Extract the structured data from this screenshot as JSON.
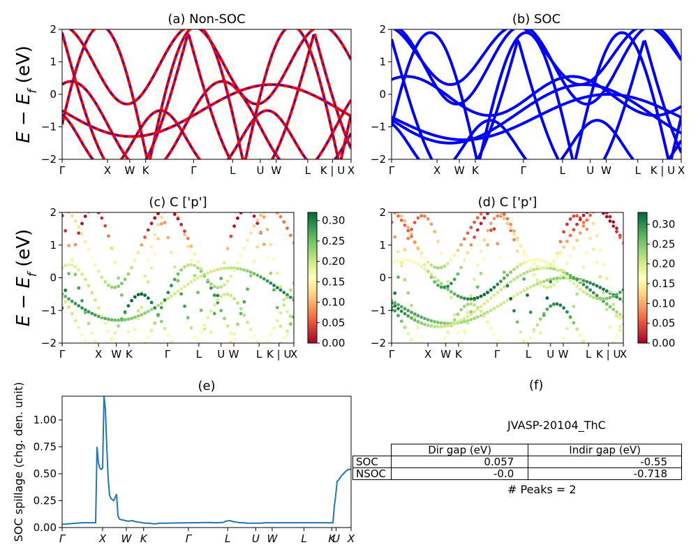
{
  "figure": {
    "material_id": "JVASP-20104_ThC",
    "peaks_label": "# Peaks = 2"
  },
  "kpath_labels": [
    "Γ",
    "X",
    "W",
    "K",
    "Γ",
    "L",
    "U",
    "W",
    "L",
    "K | U",
    "X"
  ],
  "chart_data": [
    {
      "id": "a",
      "type": "line",
      "title": "(a) Non-SOC",
      "ylabel": "E − E_f (eV)",
      "ylim": [
        -2,
        2
      ],
      "yticks": [
        "2",
        "1",
        "0",
        "−1",
        "−2"
      ],
      "xticks": [
        "Γ",
        "X",
        "W",
        "K",
        "Γ",
        "L",
        "U",
        "W",
        "L",
        "K | U",
        "X"
      ],
      "colors": {
        "base": "#ff0000",
        "overlay": "#1515c8"
      },
      "band_style": "red solid with blue dashed overlay"
    },
    {
      "id": "b",
      "type": "line",
      "title": "(b) SOC",
      "ylim": [
        -2,
        2
      ],
      "yticks": [
        "2",
        "1",
        "0",
        "−1",
        "−2"
      ],
      "xticks": [
        "Γ",
        "X",
        "W",
        "K",
        "Γ",
        "L",
        "U",
        "W",
        "L",
        "K | U",
        "X"
      ],
      "colors": {
        "base": "#0000ff"
      }
    },
    {
      "id": "c",
      "type": "scatter",
      "title": "(c)  C ['p']",
      "ylabel": "E − E_f (eV)",
      "ylim": [
        -2,
        2
      ],
      "yticks": [
        "2",
        "1",
        "0",
        "−1",
        "−2"
      ],
      "xticks": [
        "Γ",
        "X",
        "W",
        "K",
        "Γ",
        "L",
        "U",
        "W",
        "L",
        "K | U",
        "X"
      ],
      "colorbar": {
        "cmap": "RdYlGn",
        "range": [
          0,
          0.32
        ],
        "ticks": [
          "0.30",
          "0.25",
          "0.20",
          "0.15",
          "0.10",
          "0.05",
          "0.00"
        ]
      }
    },
    {
      "id": "d",
      "type": "scatter",
      "title": "(d) C ['p']",
      "ylim": [
        -2,
        2
      ],
      "yticks": [
        "2",
        "1",
        "0",
        "−1",
        "−2"
      ],
      "xticks": [
        "Γ",
        "X",
        "W",
        "K",
        "Γ",
        "L",
        "U",
        "W",
        "L",
        "K | U",
        "X"
      ],
      "colorbar": {
        "cmap": "RdYlGn",
        "range": [
          0,
          0.33
        ],
        "ticks": [
          "0.30",
          "0.25",
          "0.20",
          "0.15",
          "0.10",
          "0.05",
          "0.00"
        ]
      }
    },
    {
      "id": "e",
      "type": "line",
      "title": "(e)",
      "ylabel": "SOC spillage (chg. den. unit)",
      "ylim": [
        0,
        1.22
      ],
      "yticks": [
        "1.00",
        "0.75",
        "0.50",
        "0.25",
        "0.00"
      ],
      "xticks": [
        "Γ",
        "X",
        "W",
        "K",
        "Γ",
        "L",
        "U",
        "W",
        "L",
        "K",
        "U",
        "X"
      ],
      "color": "#1f77b4",
      "x": [
        0,
        10,
        20,
        30,
        40,
        44,
        48,
        50,
        52,
        54,
        56,
        58,
        60,
        62,
        64,
        66,
        68,
        70,
        72,
        74,
        76,
        78,
        80,
        82,
        84,
        86,
        88,
        90,
        95,
        100,
        105,
        110,
        115,
        120,
        125,
        130,
        135,
        140,
        145,
        150,
        155,
        160,
        165,
        170,
        175,
        180,
        185,
        190,
        195,
        200,
        205,
        210,
        215,
        220,
        225,
        230,
        235,
        240,
        245,
        250,
        255,
        260,
        265,
        270,
        275,
        280,
        285,
        290,
        295,
        300,
        305,
        310,
        315,
        320,
        325,
        330,
        335,
        340,
        345,
        350,
        355,
        360,
        365,
        370,
        375,
        380,
        385,
        388,
        390,
        392,
        394,
        396,
        398,
        400,
        403,
        406,
        410,
        414
      ],
      "values": [
        0.03,
        0.035,
        0.04,
        0.045,
        0.045,
        0.045,
        0.045,
        0.75,
        0.6,
        0.55,
        0.54,
        0.55,
        1.22,
        1.1,
        0.75,
        0.45,
        0.3,
        0.27,
        0.26,
        0.25,
        0.28,
        0.31,
        0.11,
        0.08,
        0.075,
        0.07,
        0.07,
        0.065,
        0.06,
        0.065,
        0.055,
        0.05,
        0.045,
        0.04,
        0.04,
        0.035,
        0.035,
        0.04,
        0.04,
        0.04,
        0.042,
        0.042,
        0.043,
        0.043,
        0.044,
        0.044,
        0.045,
        0.045,
        0.045,
        0.046,
        0.046,
        0.047,
        0.046,
        0.045,
        0.046,
        0.047,
        0.06,
        0.065,
        0.055,
        0.05,
        0.045,
        0.045,
        0.04,
        0.04,
        0.04,
        0.04,
        0.04,
        0.045,
        0.045,
        0.045,
        0.045,
        0.045,
        0.045,
        0.045,
        0.045,
        0.045,
        0.045,
        0.045,
        0.045,
        0.045,
        0.045,
        0.045,
        0.045,
        0.045,
        0.045,
        0.045,
        0.045,
        0.045,
        0.2,
        0.3,
        0.43,
        0.44,
        0.46,
        0.48,
        0.5,
        0.52,
        0.54,
        0.54
      ]
    }
  ],
  "table": {
    "title": "(f)",
    "headers": [
      "",
      "Dir gap (eV)",
      "Indir gap (eV)"
    ],
    "rows": [
      {
        "label": "SOC",
        "dir": "0.057",
        "indir": "-0.55"
      },
      {
        "label": "NSOC",
        "dir": "-0.0",
        "indir": "-0.718"
      }
    ]
  }
}
